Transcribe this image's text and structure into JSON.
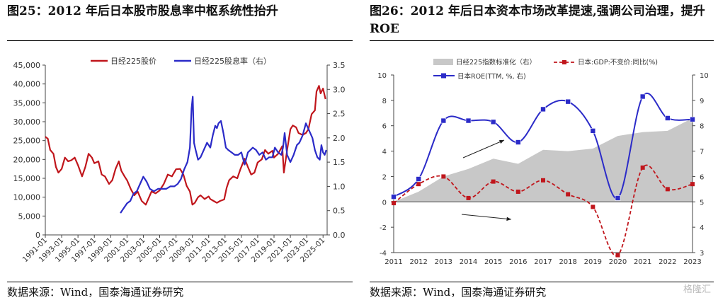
{
  "left": {
    "title": "图25：2012 年后日本股市股息率中枢系统性抬升",
    "source": "数据来源：Wind，国泰海通证券研究",
    "chart_data": {
      "type": "line",
      "title": "",
      "legend": [
        "日经225股价",
        "日经225股息率（右）"
      ],
      "colors": [
        "#c0161c",
        "#2b2bc8"
      ],
      "ylim_left": [
        0,
        45000
      ],
      "ylim_right": [
        0,
        3.5
      ],
      "yticks_left": [
        "0",
        "5,000",
        "10,000",
        "15,000",
        "20,000",
        "25,000",
        "30,000",
        "35,000",
        "40,000",
        "45,000"
      ],
      "yticks_right": [
        "0.0",
        "0.5",
        "1.0",
        "1.5",
        "2.0",
        "2.5",
        "3.0",
        "3.5"
      ],
      "xticks": [
        "1991-01",
        "1993-01",
        "1995-01",
        "1997-01",
        "1999-01",
        "2001-01",
        "2003-01",
        "2005-01",
        "2007-01",
        "2009-01",
        "2011-01",
        "2013-01",
        "2015-01",
        "2017-01",
        "2019-01",
        "2021-01",
        "2023-01",
        "2025-01"
      ],
      "xrange": [
        1991.0,
        2025.5
      ],
      "series": [
        {
          "name": "日经225股价",
          "axis": "left",
          "x": [
            1991.0,
            1991.3,
            1991.6,
            1992.0,
            1992.3,
            1992.6,
            1993.0,
            1993.4,
            1993.8,
            1994.2,
            1994.6,
            1995.0,
            1995.5,
            1995.9,
            1996.3,
            1996.7,
            1997.0,
            1997.5,
            1997.9,
            1998.3,
            1998.8,
            1999.2,
            1999.6,
            2000.0,
            2000.3,
            2000.7,
            2001.0,
            2001.5,
            2001.9,
            2002.3,
            2002.8,
            2003.3,
            2003.7,
            2004.0,
            2004.5,
            2005.0,
            2005.5,
            2006.0,
            2006.5,
            2007.0,
            2007.5,
            2007.9,
            2008.3,
            2008.7,
            2009.0,
            2009.3,
            2009.7,
            2010.0,
            2010.5,
            2011.0,
            2011.2,
            2011.6,
            2012.0,
            2012.4,
            2012.9,
            2013.2,
            2013.5,
            2014.0,
            2014.5,
            2014.9,
            2015.4,
            2015.8,
            2016.2,
            2016.6,
            2017.0,
            2017.5,
            2017.9,
            2018.3,
            2018.8,
            2019.0,
            2019.5,
            2020.0,
            2020.2,
            2020.6,
            2021.0,
            2021.3,
            2021.7,
            2022.0,
            2022.5,
            2022.9,
            2023.2,
            2023.6,
            2024.0,
            2024.2,
            2024.5,
            2024.7,
            2025.0,
            2025.3
          ],
          "values": [
            26000,
            25500,
            22500,
            21500,
            18000,
            16500,
            17500,
            20500,
            19500,
            19800,
            20500,
            18500,
            15500,
            18000,
            21500,
            20500,
            19000,
            19500,
            16000,
            15500,
            13500,
            14500,
            17500,
            19500,
            17000,
            15500,
            14500,
            12000,
            10500,
            11500,
            9000,
            8000,
            10000,
            11500,
            11000,
            11800,
            13500,
            16000,
            15500,
            17400,
            17500,
            16000,
            13000,
            11500,
            8000,
            8500,
            10000,
            10500,
            9500,
            10200,
            9500,
            9000,
            8500,
            9000,
            9400,
            12500,
            14500,
            15500,
            15000,
            17500,
            20200,
            18000,
            16000,
            16500,
            19200,
            20000,
            22500,
            21500,
            22300,
            20500,
            21500,
            23500,
            16500,
            22500,
            28000,
            29000,
            28500,
            27000,
            26500,
            27000,
            28000,
            32000,
            33000,
            38000,
            39500,
            37500,
            38800,
            36000
          ]
        },
        {
          "name": "日经225股息率（右）",
          "axis": "right",
          "x": [
            2000.2,
            2000.6,
            2001.0,
            2001.4,
            2001.8,
            2002.2,
            2002.6,
            2003.0,
            2003.4,
            2003.8,
            2004.3,
            2004.8,
            2005.3,
            2005.8,
            2006.3,
            2006.8,
            2007.2,
            2007.6,
            2008.0,
            2008.4,
            2008.7,
            2008.9,
            2009.05,
            2009.2,
            2009.4,
            2009.7,
            2010.0,
            2010.4,
            2010.8,
            2011.2,
            2011.5,
            2011.8,
            2012.0,
            2012.2,
            2012.5,
            2012.8,
            2013.1,
            2013.4,
            2013.8,
            2014.2,
            2014.6,
            2015.0,
            2015.4,
            2015.8,
            2016.1,
            2016.4,
            2016.8,
            2017.2,
            2017.6,
            2018.0,
            2018.4,
            2018.8,
            2019.1,
            2019.5,
            2019.9,
            2020.1,
            2020.3,
            2020.6,
            2021.0,
            2021.4,
            2021.8,
            2022.1,
            2022.5,
            2022.9,
            2023.3,
            2023.7,
            2024.0,
            2024.3,
            2024.6,
            2024.8,
            2025.0,
            2025.2,
            2025.4
          ],
          "values": [
            0.45,
            0.55,
            0.65,
            0.7,
            0.85,
            0.9,
            1.05,
            1.2,
            1.1,
            0.95,
            0.9,
            0.95,
            0.95,
            0.95,
            1.0,
            1.0,
            1.05,
            1.15,
            1.35,
            1.5,
            1.8,
            2.6,
            2.85,
            1.9,
            1.75,
            1.55,
            1.6,
            1.75,
            1.9,
            1.8,
            2.05,
            2.25,
            2.2,
            2.3,
            2.35,
            2.1,
            1.8,
            1.75,
            1.7,
            1.65,
            1.65,
            1.7,
            1.45,
            1.7,
            1.75,
            1.8,
            1.75,
            1.65,
            1.7,
            1.55,
            1.6,
            1.6,
            1.8,
            1.7,
            1.65,
            1.8,
            2.1,
            1.65,
            1.5,
            1.65,
            1.85,
            1.9,
            2.05,
            2.3,
            2.15,
            2.0,
            1.75,
            1.6,
            1.55,
            1.85,
            1.7,
            1.65,
            1.75
          ]
        }
      ]
    }
  },
  "right": {
    "title": "图26：2012 年后日本资本市场改革提速,强调公司治理，提升 ROE",
    "source": "数据来源：Wind，国泰海通证券研究",
    "watermark": "格隆汇",
    "chart_data": {
      "type": "line",
      "title": "",
      "legend": [
        "日经225指数标准化（右）",
        "日本:GDP:不变价:同比(%)",
        "日本ROE(TTM, %, 右)"
      ],
      "colors": [
        "#c8c8c8",
        "#c0161c",
        "#2b2bc8"
      ],
      "categories": [
        "2011",
        "2012",
        "2013",
        "2014",
        "2015",
        "2016",
        "2017",
        "2018",
        "2019",
        "2020",
        "2021",
        "2022",
        "2023"
      ],
      "ylim_left": [
        -4,
        10
      ],
      "ylim_right": [
        3,
        10
      ],
      "yticks_left": [
        "-4",
        "-2",
        "0",
        "2",
        "4",
        "6",
        "8",
        "10"
      ],
      "yticks_right": [
        "3",
        "4",
        "5",
        "6",
        "7",
        "8",
        "9",
        "10"
      ],
      "series": [
        {
          "name": "日经225指数标准化（右）",
          "axis": "right",
          "type": "area",
          "values": [
            5.0,
            5.4,
            6.0,
            6.3,
            6.7,
            6.5,
            7.05,
            7.0,
            7.1,
            7.6,
            7.75,
            7.8,
            8.3
          ]
        },
        {
          "name": "日本:GDP:不变价:同比(%)",
          "axis": "left",
          "type": "line-dashed",
          "values": [
            -0.1,
            1.4,
            2.0,
            0.3,
            1.6,
            0.8,
            1.7,
            0.6,
            -0.4,
            -4.2,
            2.7,
            1.0,
            1.4
          ]
        },
        {
          "name": "日本ROE(TTM, %, 右)",
          "axis": "right",
          "type": "line-marker",
          "values": [
            5.2,
            5.9,
            8.2,
            8.2,
            8.15,
            7.35,
            8.65,
            8.95,
            7.8,
            5.15,
            9.15,
            8.3,
            8.25
          ]
        }
      ],
      "annotations": [
        "up-arrow",
        "down-arrow"
      ]
    }
  }
}
